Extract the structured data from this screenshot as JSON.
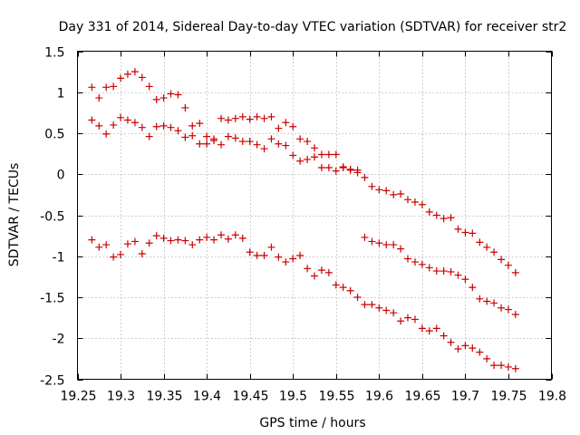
{
  "chart_data": {
    "type": "scatter",
    "title": "Day 331 of 2014, Sidereal Day-to-day VTEC variation (SDTVAR) for receiver str2",
    "xlabel": "GPS time / hours",
    "ylabel": "SDTVAR / TECUs",
    "xlim": [
      19.25,
      19.8
    ],
    "ylim": [
      -2.5,
      1.5
    ],
    "xticks": [
      19.25,
      19.3,
      19.35,
      19.4,
      19.45,
      19.5,
      19.55,
      19.6,
      19.65,
      19.7,
      19.75,
      19.8
    ],
    "xtick_labels": [
      "19.25",
      "19.3",
      "19.35",
      "19.4",
      "19.45",
      "19.5",
      "19.55",
      "19.6",
      "19.65",
      "19.7",
      "19.75",
      "19.8"
    ],
    "yticks": [
      -2.5,
      -2,
      -1.5,
      -1,
      -0.5,
      0,
      0.5,
      1,
      1.5
    ],
    "ytick_labels": [
      "-2.5",
      "-2",
      "-1.5",
      "-1",
      "-0.5",
      "0",
      "0.5",
      "1",
      "1.5"
    ],
    "grid": true,
    "marker": "+",
    "marker_color": "#cc0000",
    "series": [
      {
        "name": "series-a",
        "x": [
          19.2667,
          19.275,
          19.2833,
          19.2917,
          19.3,
          19.3083,
          19.3167,
          19.325,
          19.3333,
          19.3417,
          19.35,
          19.3583,
          19.3667,
          19.375,
          19.3833,
          19.3917,
          19.4,
          19.4083,
          19.4167,
          19.425,
          19.4333,
          19.4417,
          19.45,
          19.4583,
          19.4667,
          19.475,
          19.4833,
          19.4917,
          19.5,
          19.5083,
          19.5167,
          19.525,
          19.5333,
          19.5417,
          19.55,
          19.5583,
          19.5667,
          19.575,
          19.5833,
          19.5917,
          19.6,
          19.6083,
          19.6167,
          19.625,
          19.6333,
          19.6417,
          19.65,
          19.6583,
          19.6667,
          19.675,
          19.6833,
          19.6917,
          19.7,
          19.7083,
          19.7167,
          19.725,
          19.7333,
          19.7417,
          19.75,
          19.7583
        ],
        "y": [
          1.06,
          0.93,
          1.06,
          1.07,
          1.17,
          1.22,
          1.25,
          1.18,
          1.07,
          0.91,
          0.93,
          0.98,
          0.97,
          0.81,
          0.59,
          0.62,
          0.46,
          0.43,
          0.68,
          0.66,
          0.68,
          0.7,
          0.67,
          0.7,
          0.68,
          0.7,
          0.56,
          0.63,
          0.58,
          0.43,
          0.4,
          0.32,
          0.24,
          0.24,
          0.24,
          0.09,
          0.05,
          0.05,
          -0.04,
          -0.15,
          -0.19,
          -0.2,
          -0.25,
          -0.24,
          -0.31,
          -0.34,
          -0.37,
          -0.46,
          -0.5,
          -0.54,
          -0.53,
          -0.67,
          -0.71,
          -0.72,
          -0.83,
          -0.89,
          -0.95,
          -1.04,
          -1.11,
          -1.2
        ]
      },
      {
        "name": "series-b",
        "x": [
          19.2667,
          19.275,
          19.2833,
          19.2917,
          19.3,
          19.3083,
          19.3167,
          19.325,
          19.3333,
          19.3417,
          19.35,
          19.3583,
          19.3667,
          19.375,
          19.3833,
          19.3917,
          19.4,
          19.4083,
          19.4167,
          19.425,
          19.4333,
          19.4417,
          19.45,
          19.4583,
          19.4667,
          19.475,
          19.4833,
          19.4917,
          19.5,
          19.5083,
          19.5167,
          19.525,
          19.5333,
          19.5417,
          19.55,
          19.5583,
          19.5667,
          19.575,
          19.5833,
          19.5917,
          19.6,
          19.6083,
          19.6167,
          19.625,
          19.6333,
          19.6417,
          19.65,
          19.6583,
          19.6667,
          19.675,
          19.6833,
          19.6917,
          19.7,
          19.7083,
          19.7167,
          19.725,
          19.7333,
          19.7417,
          19.75,
          19.7583
        ],
        "y": [
          0.66,
          0.59,
          0.49,
          0.6,
          0.69,
          0.66,
          0.63,
          0.57,
          0.46,
          0.58,
          0.59,
          0.57,
          0.53,
          0.45,
          0.47,
          0.37,
          0.37,
          0.41,
          0.36,
          0.46,
          0.44,
          0.4,
          0.4,
          0.36,
          0.31,
          0.43,
          0.37,
          0.35,
          0.23,
          0.16,
          0.18,
          0.21,
          0.08,
          0.08,
          0.04,
          0.08,
          0.06,
          0.02,
          -0.77,
          -0.82,
          -0.84,
          -0.86,
          -0.86,
          -0.91,
          -1.03,
          -1.07,
          -1.1,
          -1.14,
          -1.18,
          -1.18,
          -1.19,
          -1.23,
          -1.28,
          -1.38,
          -1.52,
          -1.55,
          -1.57,
          -1.63,
          -1.65,
          -1.71
        ]
      },
      {
        "name": "series-c",
        "x": [
          19.2667,
          19.275,
          19.2833,
          19.2917,
          19.3,
          19.3083,
          19.3167,
          19.325,
          19.3333,
          19.3417,
          19.35,
          19.3583,
          19.3667,
          19.375,
          19.3833,
          19.3917,
          19.4,
          19.4083,
          19.4167,
          19.425,
          19.4333,
          19.4417,
          19.45,
          19.4583,
          19.4667,
          19.475,
          19.4833,
          19.4917,
          19.5,
          19.5083,
          19.5167,
          19.525,
          19.5333,
          19.5417,
          19.55,
          19.5583,
          19.5667,
          19.575,
          19.5833,
          19.5917,
          19.6,
          19.6083,
          19.6167,
          19.625,
          19.6333,
          19.6417,
          19.65,
          19.6583,
          19.6667,
          19.675,
          19.6833,
          19.6917,
          19.7,
          19.7083,
          19.7167,
          19.725,
          19.7333,
          19.7417,
          19.75,
          19.7583
        ],
        "y": [
          -0.8,
          -0.89,
          -0.86,
          -1.01,
          -0.98,
          -0.85,
          -0.82,
          -0.97,
          -0.84,
          -0.75,
          -0.78,
          -0.81,
          -0.8,
          -0.81,
          -0.86,
          -0.8,
          -0.77,
          -0.8,
          -0.74,
          -0.79,
          -0.74,
          -0.78,
          -0.95,
          -0.99,
          -0.99,
          -0.89,
          -1.01,
          -1.07,
          -1.03,
          -0.99,
          -1.15,
          -1.24,
          -1.17,
          -1.2,
          -1.35,
          -1.38,
          -1.42,
          -1.5,
          -1.59,
          -1.59,
          -1.63,
          -1.66,
          -1.69,
          -1.79,
          -1.75,
          -1.77,
          -1.88,
          -1.91,
          -1.88,
          -1.97,
          -2.05,
          -2.13,
          -2.09,
          -2.12,
          -2.17,
          -2.25,
          -2.33,
          -2.33,
          -2.35,
          -2.37
        ]
      }
    ]
  }
}
